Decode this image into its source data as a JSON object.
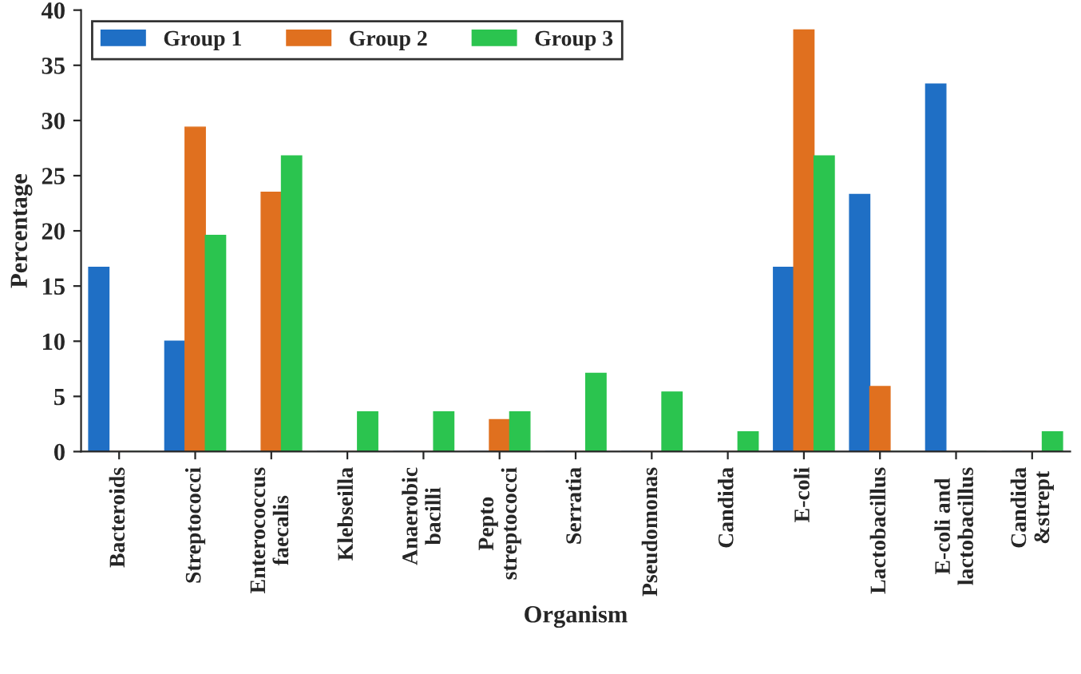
{
  "chart_data": {
    "type": "bar",
    "xlabel": "Organism",
    "ylabel": "Percentage",
    "categories": [
      "Bacteroids",
      "Streptococci",
      "Enterococcus\nfaecalis",
      "Klebseilla",
      "Anaerobic\nbacilli",
      "Pepto\nstreptococci",
      "Serratia",
      "Pseudomonas",
      "Candida",
      "E-coli",
      "Lactobacillus",
      "E-coli and\nlactobacillus",
      "Candida\n&strept"
    ],
    "series": [
      {
        "name": "Group 1",
        "color": "#1f6fc5",
        "values": [
          16.7,
          10,
          0,
          0,
          0,
          0,
          0,
          0,
          0,
          16.7,
          23.3,
          33.3,
          0
        ]
      },
      {
        "name": "Group 2",
        "color": "#e0701f",
        "values": [
          0,
          29.4,
          23.5,
          0,
          0,
          2.9,
          0,
          0,
          0,
          38.2,
          5.9,
          0,
          0
        ]
      },
      {
        "name": "Group 3",
        "color": "#2bc44f",
        "values": [
          0,
          19.6,
          26.8,
          3.6,
          3.6,
          3.6,
          7.1,
          5.4,
          1.8,
          26.8,
          0,
          0,
          1.8
        ]
      }
    ],
    "ylim": [
      0,
      40
    ],
    "yticks": [
      0,
      5,
      10,
      15,
      20,
      25,
      30,
      35,
      40
    ],
    "grid": false,
    "legend": "top left"
  }
}
